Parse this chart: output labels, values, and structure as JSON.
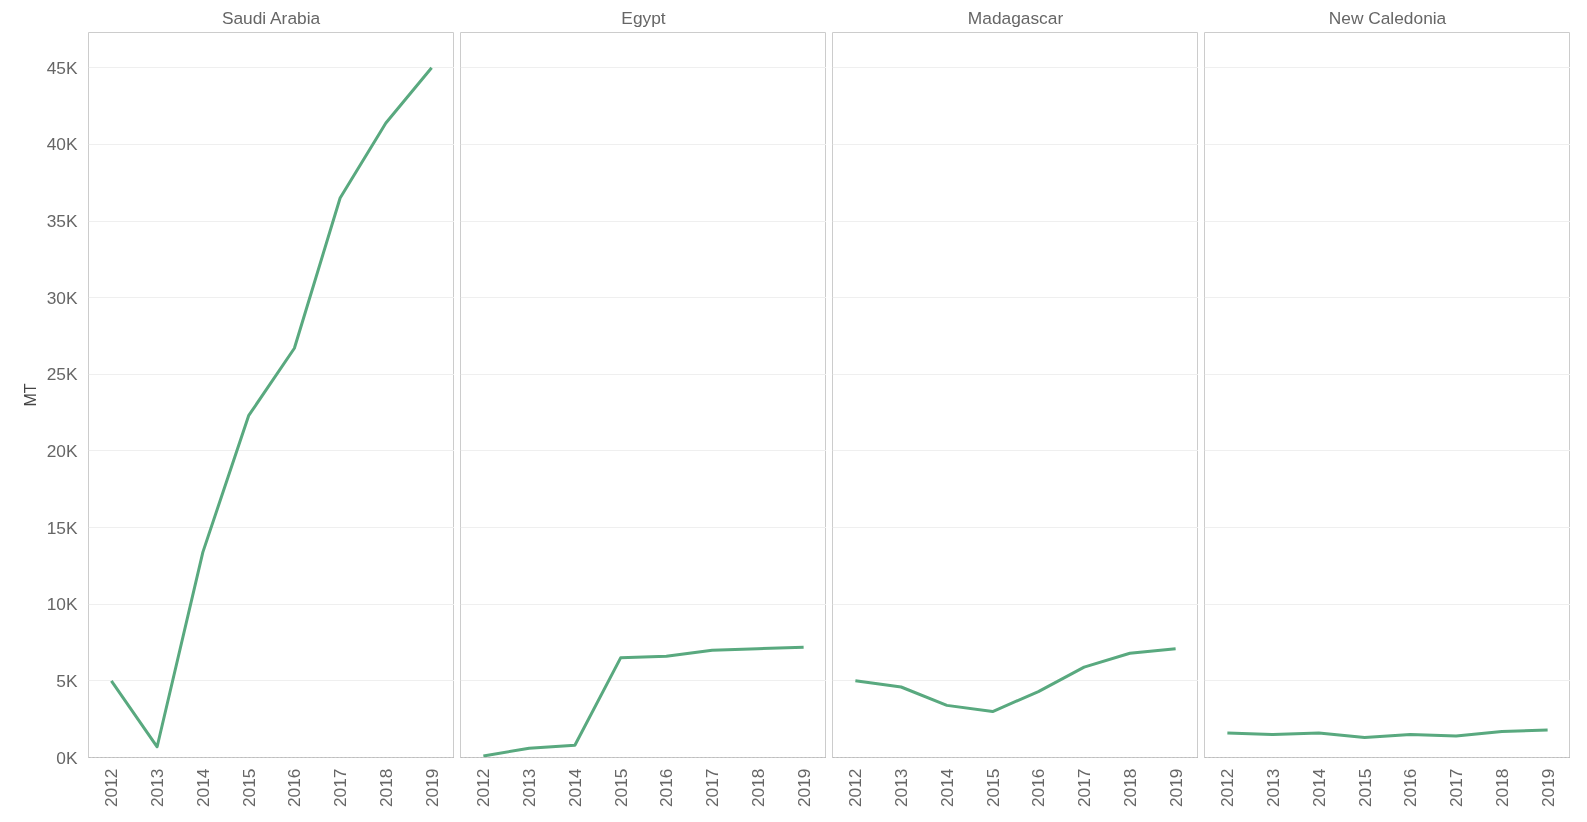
{
  "chart_data": [
    {
      "type": "line",
      "title": "Saudi Arabia",
      "ylabel": "MT",
      "categories": [
        "2012",
        "2013",
        "2014",
        "2015",
        "2016",
        "2017",
        "2018",
        "2019"
      ],
      "color": "#59a97f",
      "values": [
        5000,
        700,
        13400,
        22300,
        26700,
        36500,
        41400,
        45000
      ],
      "ylim": [
        0,
        47300
      ],
      "yticks": [
        {
          "value": 0,
          "label": "0K"
        },
        {
          "value": 5000,
          "label": "5K"
        },
        {
          "value": 10000,
          "label": "10K"
        },
        {
          "value": 15000,
          "label": "15K"
        },
        {
          "value": 20000,
          "label": "20K"
        },
        {
          "value": 25000,
          "label": "25K"
        },
        {
          "value": 30000,
          "label": "30K"
        },
        {
          "value": 35000,
          "label": "35K"
        },
        {
          "value": 40000,
          "label": "40K"
        },
        {
          "value": 45000,
          "label": "45K"
        }
      ],
      "grid": "y"
    },
    {
      "type": "line",
      "title": "Egypt",
      "categories": [
        "2012",
        "2013",
        "2014",
        "2015",
        "2016",
        "2017",
        "2018",
        "2019"
      ],
      "color": "#59a97f",
      "values": [
        100,
        600,
        800,
        6500,
        6600,
        7000,
        7100,
        7200
      ],
      "ylim": [
        0,
        47300
      ],
      "yticks": [
        {
          "value": 0,
          "label": null
        },
        {
          "value": 5000,
          "label": null
        },
        {
          "value": 10000,
          "label": null
        },
        {
          "value": 15000,
          "label": null
        },
        {
          "value": 20000,
          "label": null
        },
        {
          "value": 25000,
          "label": null
        },
        {
          "value": 30000,
          "label": null
        },
        {
          "value": 35000,
          "label": null
        },
        {
          "value": 40000,
          "label": null
        },
        {
          "value": 45000,
          "label": null
        }
      ],
      "grid": "y",
      "tick_labels": "x"
    },
    {
      "type": "line",
      "title": "Madagascar",
      "categories": [
        "2012",
        "2013",
        "2014",
        "2015",
        "2016",
        "2017",
        "2018",
        "2019"
      ],
      "color": "#59a97f",
      "values": [
        5000,
        4600,
        3400,
        3000,
        4300,
        5900,
        6800,
        7100
      ],
      "ylim": [
        0,
        47300
      ],
      "yticks": [
        {
          "value": 0,
          "label": null
        },
        {
          "value": 5000,
          "label": null
        },
        {
          "value": 10000,
          "label": null
        },
        {
          "value": 15000,
          "label": null
        },
        {
          "value": 20000,
          "label": null
        },
        {
          "value": 25000,
          "label": null
        },
        {
          "value": 30000,
          "label": null
        },
        {
          "value": 35000,
          "label": null
        },
        {
          "value": 40000,
          "label": null
        },
        {
          "value": 45000,
          "label": null
        }
      ],
      "grid": "y",
      "tick_labels": "x"
    },
    {
      "type": "line",
      "title": "New Caledonia",
      "categories": [
        "2012",
        "2013",
        "2014",
        "2015",
        "2016",
        "2017",
        "2018",
        "2019"
      ],
      "color": "#59a97f",
      "values": [
        1600,
        1500,
        1600,
        1300,
        1500,
        1400,
        1700,
        1800
      ],
      "ylim": [
        0,
        47300
      ],
      "yticks": [
        {
          "value": 0,
          "label": null
        },
        {
          "value": 5000,
          "label": null
        },
        {
          "value": 10000,
          "label": null
        },
        {
          "value": 15000,
          "label": null
        },
        {
          "value": 20000,
          "label": null
        },
        {
          "value": 25000,
          "label": null
        },
        {
          "value": 30000,
          "label": null
        },
        {
          "value": 35000,
          "label": null
        },
        {
          "value": 40000,
          "label": null
        },
        {
          "value": 45000,
          "label": null
        }
      ],
      "grid": "y",
      "tick_labels": "x"
    }
  ]
}
